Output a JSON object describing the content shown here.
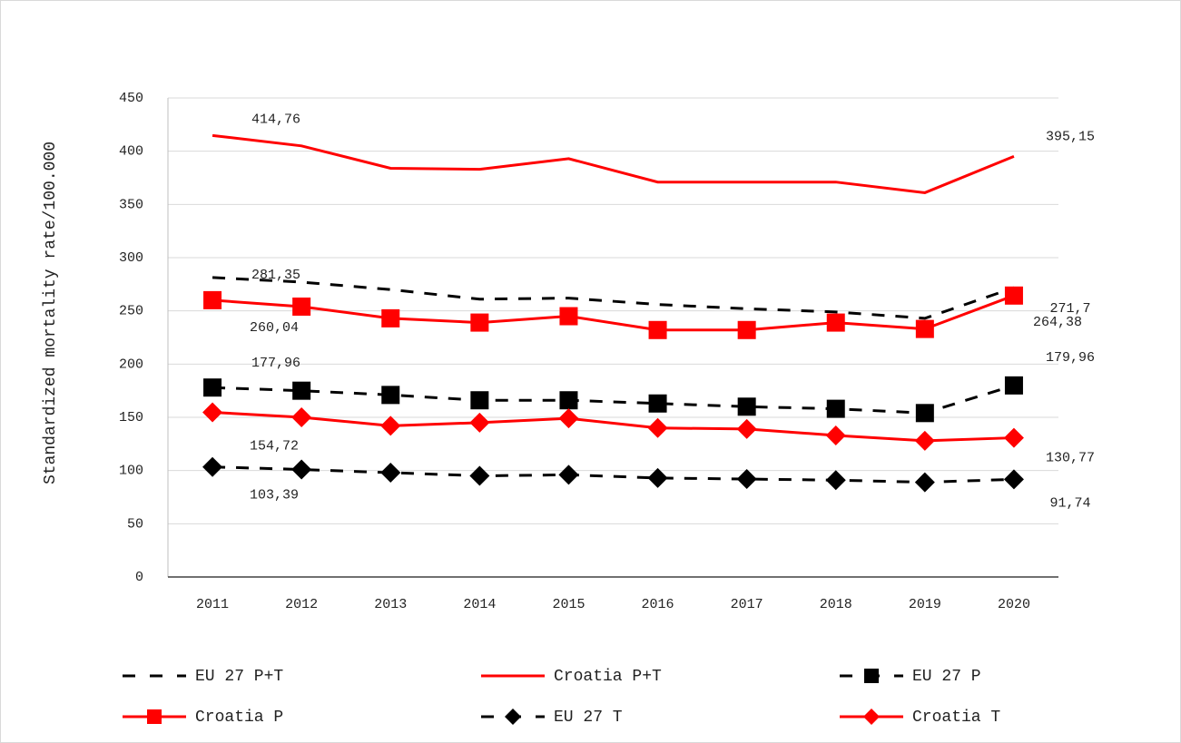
{
  "chart_data": {
    "type": "line",
    "y_label": "Standardized mortality rate/100.000",
    "categories": [
      "2011",
      "2012",
      "2013",
      "2014",
      "2015",
      "2016",
      "2017",
      "2018",
      "2019",
      "2020"
    ],
    "ylim": [
      0,
      450
    ],
    "yticks": [
      0,
      50,
      100,
      150,
      200,
      250,
      300,
      350,
      400,
      450
    ],
    "grid": true,
    "legend": "bottom",
    "series": [
      {
        "name": "EU 27 P+T",
        "color": "#000000",
        "line_style": "dashed",
        "marker": "none",
        "values": [
          281.35,
          277,
          270,
          261,
          262,
          256,
          252,
          249,
          243,
          271.7
        ],
        "value_labels": [
          "281,35",
          null,
          null,
          null,
          null,
          null,
          null,
          null,
          null,
          "271,7"
        ]
      },
      {
        "name": "Croatia P+T",
        "color": "#ff0000",
        "line_style": "solid",
        "marker": "none",
        "values": [
          414.76,
          405,
          384,
          383,
          393,
          371,
          371,
          371,
          361,
          395.15
        ],
        "value_labels": [
          "414,76",
          null,
          null,
          null,
          null,
          null,
          null,
          null,
          null,
          "395,15"
        ]
      },
      {
        "name": "EU 27 P",
        "color": "#000000",
        "line_style": "dashed",
        "marker": "square",
        "values": [
          177.96,
          175,
          171,
          166,
          166,
          163,
          160,
          158,
          154,
          179.96
        ],
        "value_labels": [
          "177,96",
          null,
          null,
          null,
          null,
          null,
          null,
          null,
          null,
          "179,96"
        ]
      },
      {
        "name": "Croatia P",
        "color": "#ff0000",
        "line_style": "solid",
        "marker": "square",
        "values": [
          260.04,
          254,
          243,
          239,
          245,
          232,
          232,
          239,
          233,
          264.38
        ],
        "value_labels": [
          "260,04",
          null,
          null,
          null,
          null,
          null,
          null,
          null,
          null,
          "264,38"
        ]
      },
      {
        "name": "EU 27 T",
        "color": "#000000",
        "line_style": "dashed",
        "marker": "diamond",
        "values": [
          103.39,
          101,
          98,
          95,
          96,
          93,
          92,
          91,
          89,
          91.74
        ],
        "value_labels": [
          "103,39",
          null,
          null,
          null,
          null,
          null,
          null,
          null,
          null,
          "91,74"
        ]
      },
      {
        "name": "Croatia T",
        "color": "#ff0000",
        "line_style": "solid",
        "marker": "diamond",
        "values": [
          154.72,
          150,
          142,
          145,
          149,
          140,
          139,
          133,
          128,
          130.77
        ],
        "value_labels": [
          "154,72",
          null,
          null,
          null,
          null,
          null,
          null,
          null,
          null,
          "130,77"
        ]
      }
    ]
  }
}
